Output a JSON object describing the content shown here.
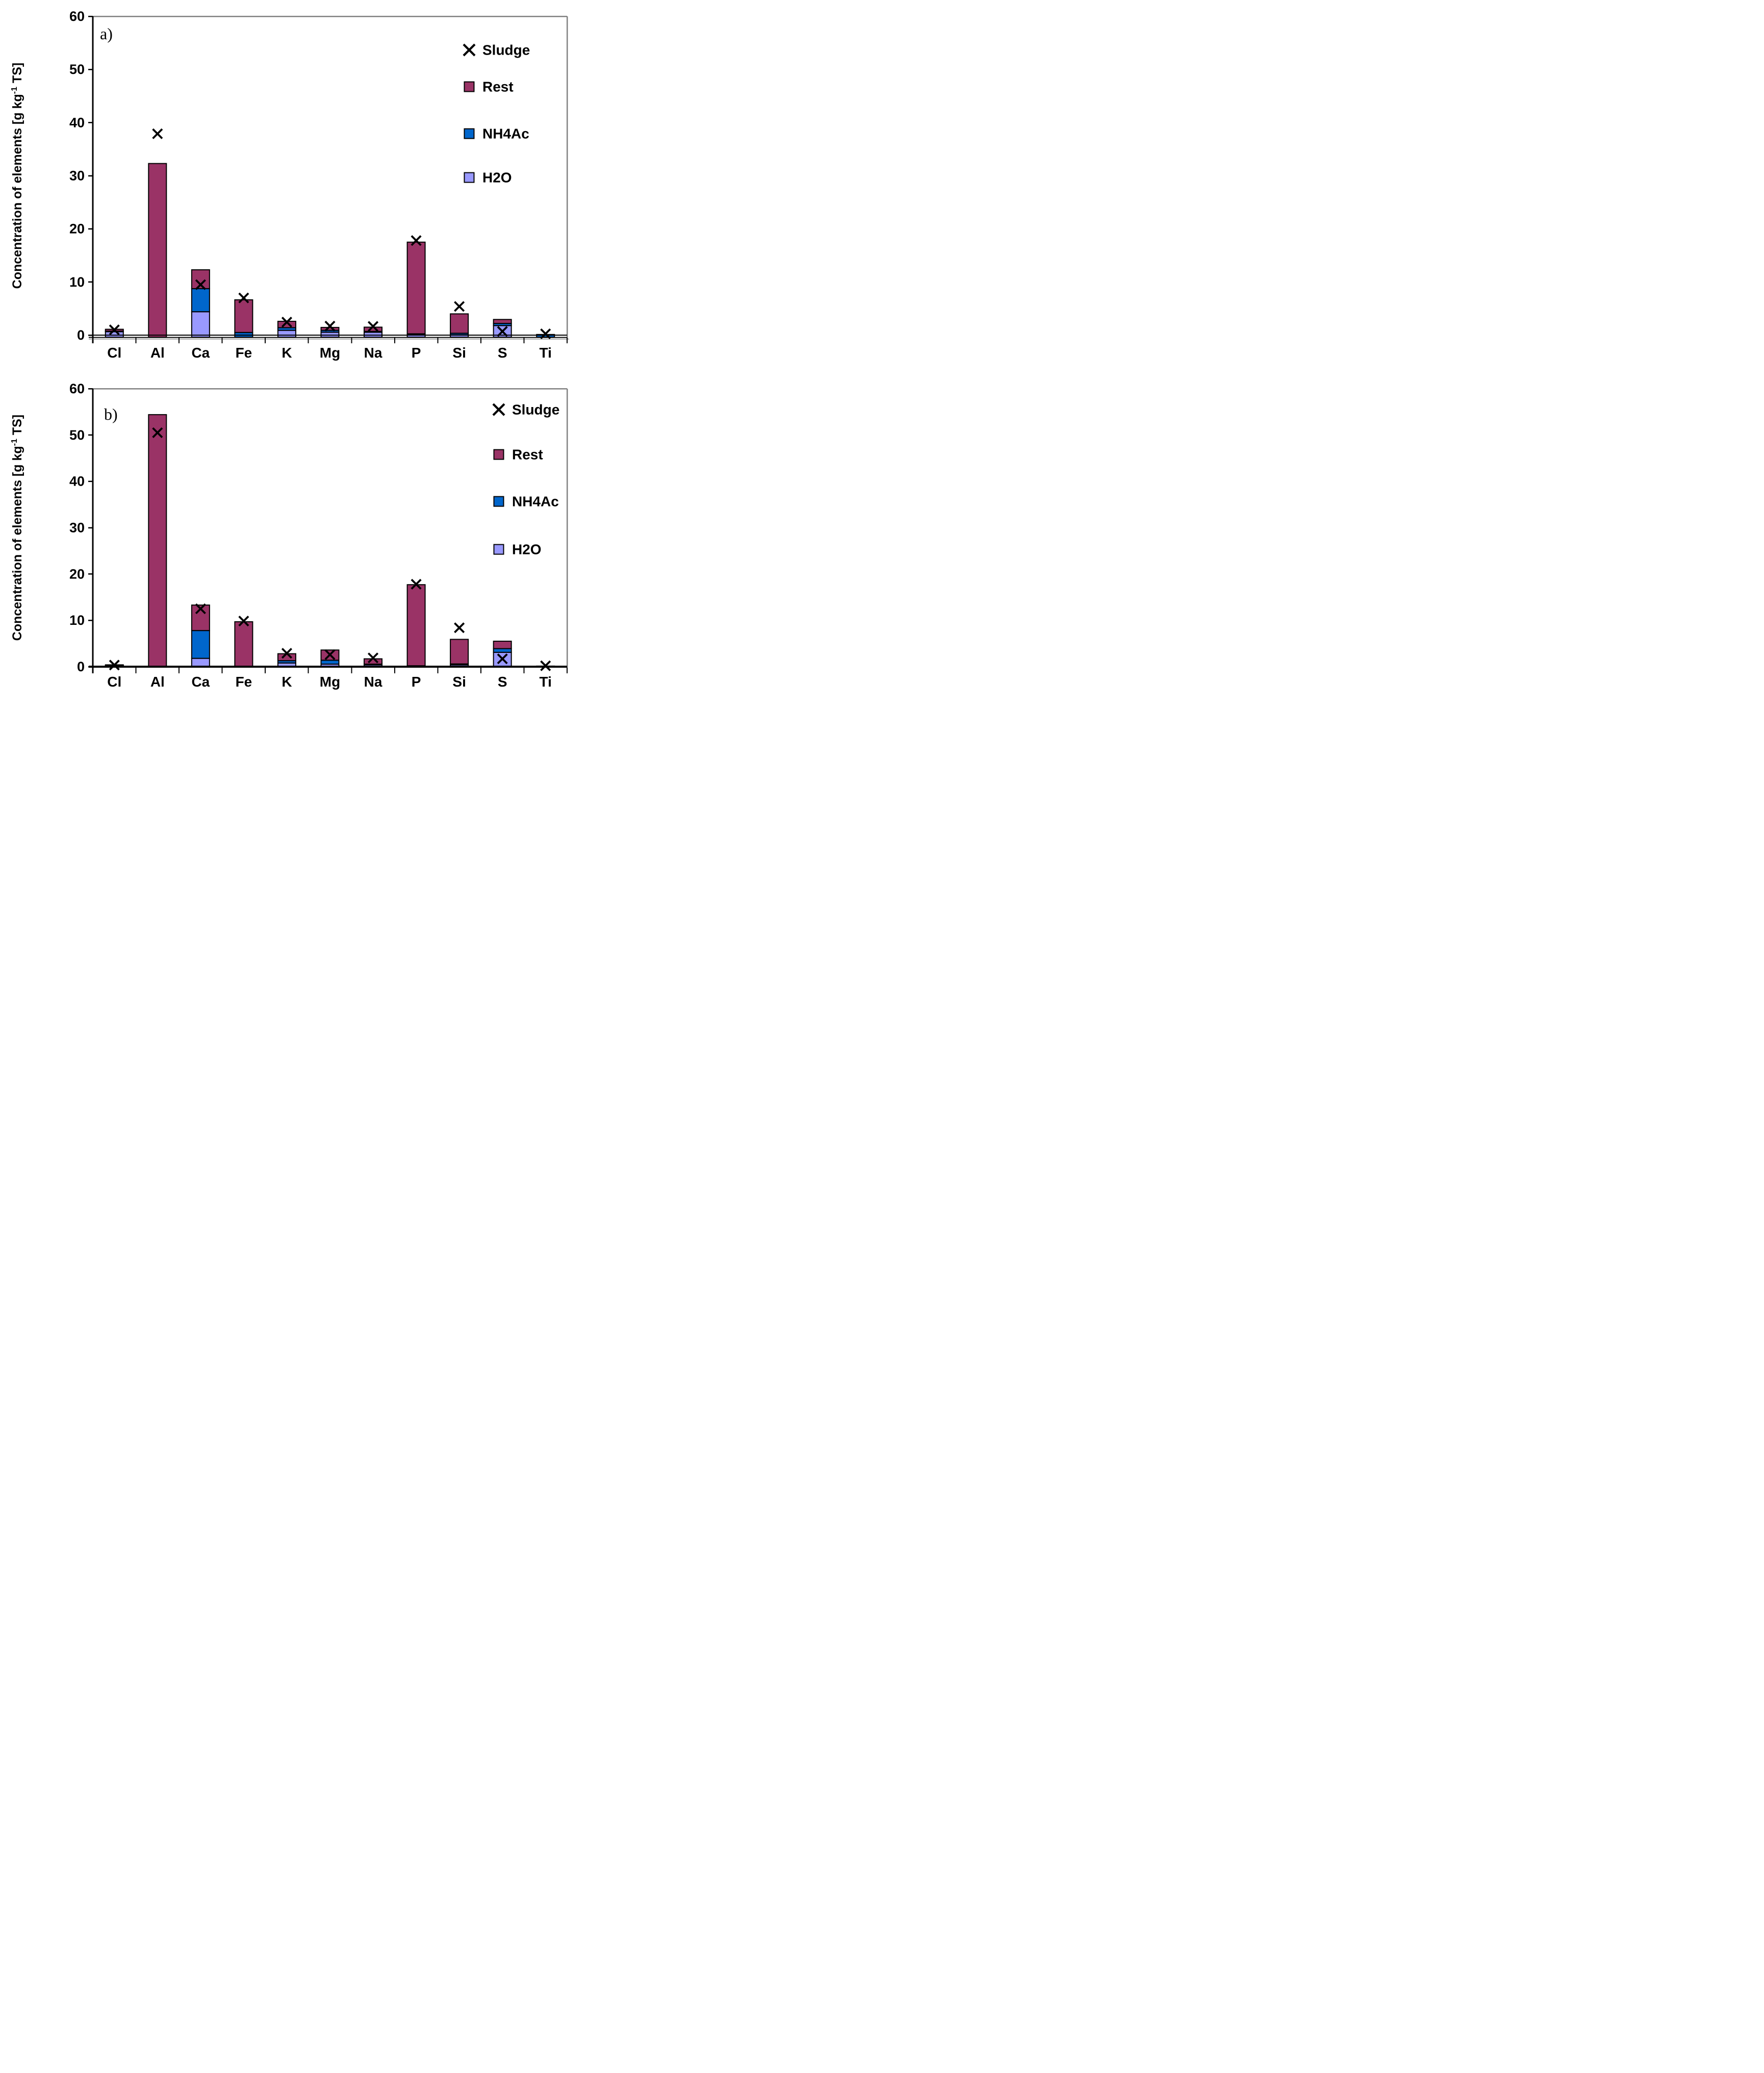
{
  "figure": {
    "background": "#FFFFFF",
    "description": "Two stacked bar charts of element concentrations in sludge after sequential extraction"
  },
  "style": {
    "frame_color": "#808080",
    "axis_color": "#000000",
    "text_color": "#000000",
    "marker_color": "#000000",
    "rest_color": "#9A3366",
    "nh4ac_color": "#0066CC",
    "h2o_color": "#9999FF"
  },
  "chart_data": [
    {
      "id": "a",
      "type": "bar",
      "subtype": "stacked-bars-with-scatter-overlay",
      "panel_label": "a)",
      "title": "",
      "xlabel": "",
      "ylabel": "Concentration of elements [g kg⁻¹ TS]",
      "ylabel_parts": {
        "pre": "Concentration of elements [g kg",
        "sup": "-1",
        "post": " TS]"
      },
      "ylim": [
        0,
        60
      ],
      "ytick_step": 10,
      "yticks": [
        0,
        10,
        20,
        30,
        40,
        50,
        60
      ],
      "grid": false,
      "legend_position": "top-right",
      "categories": [
        "Cl",
        "Al",
        "Ca",
        "Fe",
        "K",
        "Mg",
        "Na",
        "P",
        "Si",
        "S",
        "Ti"
      ],
      "series": [
        {
          "name": "H2O",
          "color": "#9999FF",
          "values": [
            0.65,
            0,
            4.4,
            0,
            0.9,
            0.55,
            0.55,
            0.05,
            0.05,
            1.8,
            0
          ]
        },
        {
          "name": "NH4Ac",
          "color": "#0066CC",
          "values": [
            0.1,
            0,
            4.35,
            0.5,
            0.5,
            0.35,
            0.15,
            0.2,
            0.3,
            0.4,
            0.05
          ]
        },
        {
          "name": "Rest",
          "color": "#9A3366",
          "values": [
            0.35,
            32.3,
            3.55,
            6.15,
            1.2,
            0.55,
            0.8,
            17.25,
            3.65,
            0.75,
            0.07
          ]
        }
      ],
      "scatter": {
        "name": "Sludge",
        "marker": "x",
        "color": "#000000",
        "values": [
          1.0,
          37.9,
          9.5,
          7.0,
          2.45,
          1.7,
          1.65,
          17.8,
          5.4,
          0.7,
          0.25
        ]
      },
      "legend": [
        {
          "label": "Sludge",
          "marker": "x"
        },
        {
          "label": "Rest",
          "marker": "square",
          "color": "#9A3366"
        },
        {
          "label": "NH4Ac",
          "marker": "square",
          "color": "#0066CC"
        },
        {
          "label": "H2O",
          "marker": "square",
          "color": "#9999FF"
        }
      ]
    },
    {
      "id": "b",
      "type": "bar",
      "subtype": "stacked-bars-with-scatter-overlay",
      "panel_label": "b)",
      "title": "",
      "xlabel": "",
      "ylabel": "Concentration of elements [g kg⁻¹ TS]",
      "ylabel_parts": {
        "pre": "Concentration of elements [g kg",
        "sup": "-1",
        "post": " TS]"
      },
      "ylim": [
        0,
        60
      ],
      "ytick_step": 10,
      "yticks": [
        0,
        10,
        20,
        30,
        40,
        50,
        60
      ],
      "grid": false,
      "legend_position": "top-right",
      "categories": [
        "Cl",
        "Al",
        "Ca",
        "Fe",
        "K",
        "Mg",
        "Na",
        "P",
        "Si",
        "S",
        "Ti"
      ],
      "series": [
        {
          "name": "H2O",
          "color": "#9999FF",
          "values": [
            0.2,
            0,
            1.8,
            0,
            0.8,
            0.55,
            0.4,
            0.05,
            0.4,
            3.1,
            0
          ]
        },
        {
          "name": "NH4Ac",
          "color": "#0066CC",
          "values": [
            0.05,
            0,
            6.0,
            0.1,
            0.5,
            0.85,
            0.15,
            0.15,
            0.2,
            0.8,
            0.05
          ]
        },
        {
          "name": "Rest",
          "color": "#9A3366",
          "values": [
            0.15,
            54.4,
            5.5,
            9.6,
            1.5,
            2.2,
            1.15,
            17.5,
            5.3,
            1.6,
            0.08
          ]
        }
      ],
      "scatter": {
        "name": "Sludge",
        "marker": "x",
        "color": "#000000",
        "values": [
          0.35,
          50.5,
          12.5,
          9.85,
          2.9,
          2.6,
          1.9,
          17.8,
          8.4,
          1.7,
          0.2
        ]
      },
      "legend": [
        {
          "label": "Sludge",
          "marker": "x"
        },
        {
          "label": "Rest",
          "marker": "square",
          "color": "#9A3366"
        },
        {
          "label": "NH4Ac",
          "marker": "square",
          "color": "#0066CC"
        },
        {
          "label": "H2O",
          "marker": "square",
          "color": "#9999FF"
        }
      ]
    }
  ]
}
